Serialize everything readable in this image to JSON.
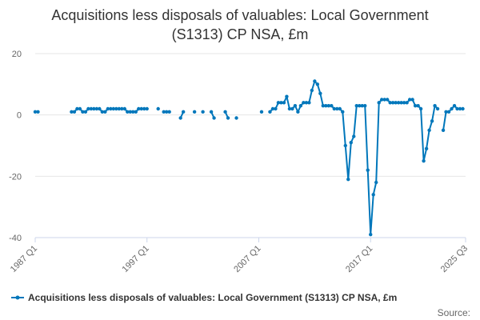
{
  "chart_data": {
    "type": "line",
    "title_lines": [
      "Acquisitions less disposals of valuables: Local Government",
      "(S1313) CP NSA, £m"
    ],
    "xlabel": "",
    "ylabel": "",
    "ylim": [
      -40,
      20
    ],
    "yticks": [
      "20",
      "0",
      "-20",
      "-40"
    ],
    "x_tick_labels": [
      "1987 Q1",
      "1997 Q1",
      "2007 Q1",
      "2017 Q1",
      "2025 Q3"
    ],
    "x_start": "1987 Q1",
    "x_end": "2025 Q3",
    "color": "#0077bb",
    "series": [
      {
        "name": "Acquisitions less disposals of valuables: Local Government (S1313) CP NSA, £m",
        "segments": [
          {
            "start": 0,
            "values": [
              1,
              1
            ]
          },
          {
            "start": 13,
            "values": [
              1,
              1,
              2,
              2,
              1,
              1,
              2,
              2,
              2,
              2,
              2,
              1,
              1,
              2,
              2,
              2,
              2,
              2,
              2,
              2,
              1,
              1,
              1,
              1,
              2,
              2,
              2,
              2
            ]
          },
          {
            "start": 44,
            "values": [
              2
            ]
          },
          {
            "start": 46,
            "values": [
              1,
              1,
              1
            ]
          },
          {
            "start": 52,
            "values": [
              -1,
              1
            ]
          },
          {
            "start": 57,
            "values": [
              1
            ]
          },
          {
            "start": 60,
            "values": [
              1
            ]
          },
          {
            "start": 63,
            "values": [
              1,
              -1
            ]
          },
          {
            "start": 68,
            "values": [
              1,
              -1
            ]
          },
          {
            "start": 72,
            "values": [
              -1
            ]
          },
          {
            "start": 81,
            "values": [
              1
            ]
          },
          {
            "start": 84,
            "values": [
              1,
              2,
              2,
              4,
              4,
              4,
              6,
              2,
              2,
              3,
              1,
              3,
              4,
              4,
              4,
              8,
              11,
              10,
              7,
              3,
              3,
              3,
              3,
              2,
              2,
              2,
              1,
              -10,
              -21,
              -9,
              -7,
              3,
              3,
              3,
              3,
              -18,
              -39,
              -26,
              -22,
              4,
              5,
              5,
              5,
              4,
              4,
              4,
              4,
              4,
              4,
              4,
              5,
              5,
              3,
              3,
              2,
              -15,
              -11,
              -5,
              -2,
              3,
              2
            ]
          },
          {
            "start": 146,
            "values": [
              -5,
              1,
              1,
              2,
              3,
              2,
              2,
              2
            ]
          }
        ]
      }
    ],
    "legend": {
      "position": "bottom-left",
      "label": "Acquisitions less disposals of valuables: Local Government (S1313) CP NSA, £m"
    },
    "source_label": "Source:"
  }
}
